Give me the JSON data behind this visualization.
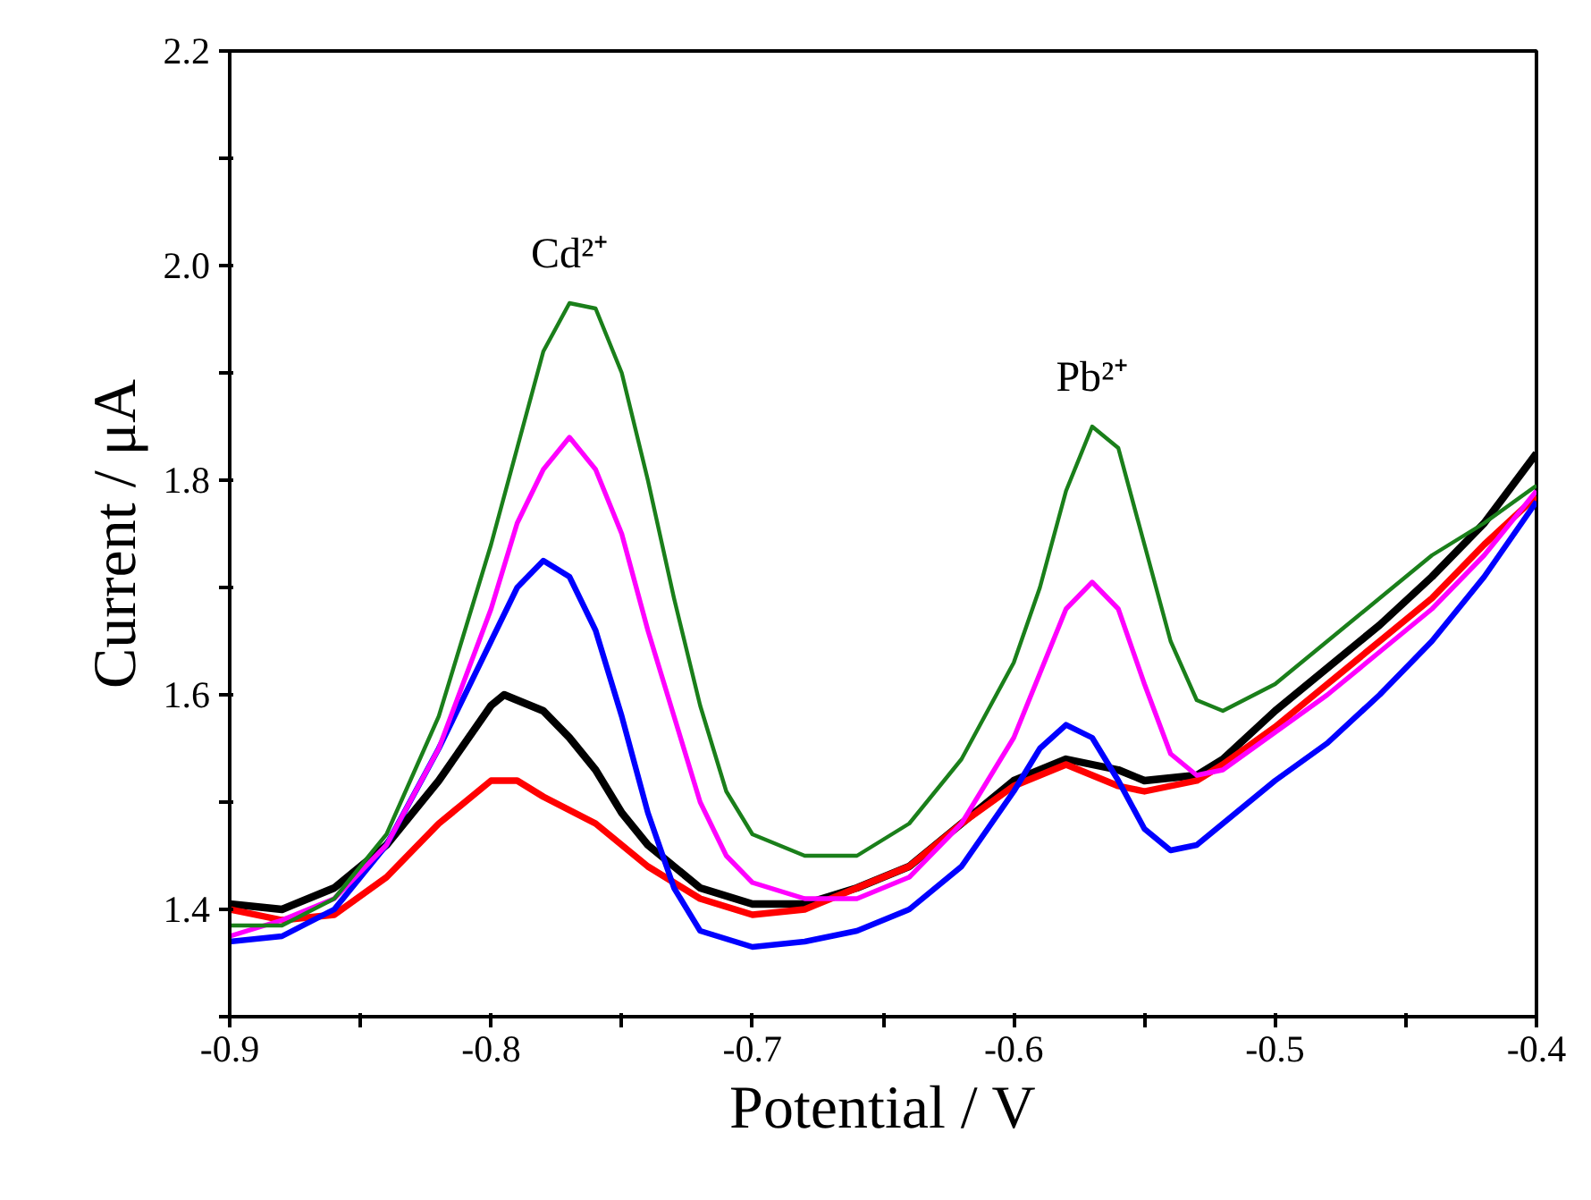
{
  "chart_data": {
    "type": "line",
    "xlabel": "Potential / V",
    "ylabel": "Current / μA",
    "xlim": [
      -0.9,
      -0.4
    ],
    "ylim": [
      1.3,
      2.2
    ],
    "xticks": [
      -0.9,
      {
        "value": -0.85,
        "label": null
      },
      -0.8,
      {
        "value": -0.75,
        "label": null
      },
      -0.7,
      {
        "value": -0.65,
        "label": null
      },
      -0.6,
      {
        "value": -0.55,
        "label": null
      },
      -0.5,
      {
        "value": -0.45,
        "label": null
      },
      -0.4
    ],
    "yticks": [
      {
        "value": 1.3,
        "label": null
      },
      1.4,
      {
        "value": 1.5,
        "label": null
      },
      1.6,
      {
        "value": 1.7,
        "label": null
      },
      1.8,
      {
        "value": 1.9,
        "label": null
      },
      {
        "value": 2.0,
        "label": "2.0"
      },
      {
        "value": 2.1,
        "label": null
      },
      2.2
    ],
    "grid": false,
    "marker": "none",
    "line_style": "solid",
    "annotations": [
      {
        "text": "Cd²⁺",
        "x": -0.77,
        "y": 1.965
      },
      {
        "text": "Pb²⁺",
        "x": -0.57,
        "y": 1.85
      }
    ],
    "series": [
      {
        "color": "#000000",
        "x": [
          -0.9,
          -0.88,
          -0.86,
          -0.84,
          -0.82,
          -0.8,
          -0.795,
          -0.78,
          -0.77,
          -0.76,
          -0.75,
          -0.74,
          -0.72,
          -0.7,
          -0.68,
          -0.66,
          -0.64,
          -0.62,
          -0.6,
          -0.58,
          -0.56,
          -0.55,
          -0.53,
          -0.52,
          -0.5,
          -0.48,
          -0.46,
          -0.44,
          -0.42,
          -0.4
        ],
        "values": [
          1.405,
          1.4,
          1.42,
          1.46,
          1.52,
          1.59,
          1.6,
          1.585,
          1.56,
          1.53,
          1.49,
          1.46,
          1.42,
          1.405,
          1.405,
          1.42,
          1.44,
          1.48,
          1.52,
          1.54,
          1.53,
          1.52,
          1.525,
          1.54,
          1.585,
          1.625,
          1.665,
          1.71,
          1.76,
          1.825
        ]
      },
      {
        "color": "#ff0000",
        "x": [
          -0.9,
          -0.88,
          -0.86,
          -0.84,
          -0.82,
          -0.8,
          -0.79,
          -0.78,
          -0.76,
          -0.74,
          -0.72,
          -0.7,
          -0.68,
          -0.66,
          -0.64,
          -0.62,
          -0.6,
          -0.58,
          -0.57,
          -0.56,
          -0.55,
          -0.53,
          -0.52,
          -0.5,
          -0.48,
          -0.46,
          -0.44,
          -0.42,
          -0.4
        ],
        "values": [
          1.4,
          1.39,
          1.395,
          1.43,
          1.48,
          1.52,
          1.52,
          1.505,
          1.48,
          1.44,
          1.41,
          1.395,
          1.4,
          1.42,
          1.44,
          1.48,
          1.515,
          1.535,
          1.525,
          1.515,
          1.51,
          1.52,
          1.535,
          1.57,
          1.61,
          1.65,
          1.69,
          1.74,
          1.785
        ]
      },
      {
        "color": "#0000ff",
        "x": [
          -0.9,
          -0.88,
          -0.86,
          -0.84,
          -0.82,
          -0.8,
          -0.79,
          -0.78,
          -0.77,
          -0.76,
          -0.75,
          -0.74,
          -0.73,
          -0.72,
          -0.7,
          -0.68,
          -0.66,
          -0.64,
          -0.62,
          -0.6,
          -0.59,
          -0.58,
          -0.57,
          -0.56,
          -0.55,
          -0.54,
          -0.53,
          -0.52,
          -0.5,
          -0.48,
          -0.46,
          -0.44,
          -0.42,
          -0.4
        ],
        "values": [
          1.37,
          1.375,
          1.4,
          1.46,
          1.55,
          1.65,
          1.7,
          1.725,
          1.71,
          1.66,
          1.58,
          1.49,
          1.42,
          1.38,
          1.365,
          1.37,
          1.38,
          1.4,
          1.44,
          1.51,
          1.55,
          1.572,
          1.56,
          1.52,
          1.475,
          1.455,
          1.46,
          1.48,
          1.52,
          1.555,
          1.6,
          1.65,
          1.71,
          1.78
        ]
      },
      {
        "color": "#ff00ff",
        "x": [
          -0.9,
          -0.88,
          -0.86,
          -0.84,
          -0.82,
          -0.8,
          -0.79,
          -0.78,
          -0.77,
          -0.76,
          -0.75,
          -0.74,
          -0.73,
          -0.72,
          -0.71,
          -0.7,
          -0.68,
          -0.66,
          -0.64,
          -0.62,
          -0.6,
          -0.59,
          -0.58,
          -0.57,
          -0.56,
          -0.55,
          -0.54,
          -0.53,
          -0.52,
          -0.5,
          -0.48,
          -0.46,
          -0.44,
          -0.42,
          -0.4
        ],
        "values": [
          1.375,
          1.39,
          1.41,
          1.46,
          1.55,
          1.68,
          1.76,
          1.81,
          1.84,
          1.81,
          1.75,
          1.66,
          1.58,
          1.5,
          1.45,
          1.425,
          1.41,
          1.41,
          1.43,
          1.48,
          1.56,
          1.62,
          1.68,
          1.705,
          1.68,
          1.61,
          1.545,
          1.525,
          1.53,
          1.565,
          1.6,
          1.64,
          1.68,
          1.73,
          1.79
        ]
      },
      {
        "color": "#1a7f1a",
        "x": [
          -0.9,
          -0.88,
          -0.86,
          -0.84,
          -0.82,
          -0.8,
          -0.79,
          -0.78,
          -0.77,
          -0.76,
          -0.75,
          -0.74,
          -0.73,
          -0.72,
          -0.71,
          -0.7,
          -0.68,
          -0.66,
          -0.64,
          -0.62,
          -0.6,
          -0.59,
          -0.58,
          -0.57,
          -0.56,
          -0.55,
          -0.54,
          -0.53,
          -0.52,
          -0.5,
          -0.48,
          -0.46,
          -0.44,
          -0.42,
          -0.4
        ],
        "values": [
          1.385,
          1.385,
          1.41,
          1.47,
          1.58,
          1.74,
          1.83,
          1.92,
          1.965,
          1.96,
          1.9,
          1.8,
          1.69,
          1.59,
          1.51,
          1.47,
          1.45,
          1.45,
          1.48,
          1.54,
          1.63,
          1.7,
          1.79,
          1.85,
          1.83,
          1.74,
          1.65,
          1.595,
          1.585,
          1.61,
          1.65,
          1.69,
          1.73,
          1.76,
          1.795
        ]
      }
    ]
  }
}
